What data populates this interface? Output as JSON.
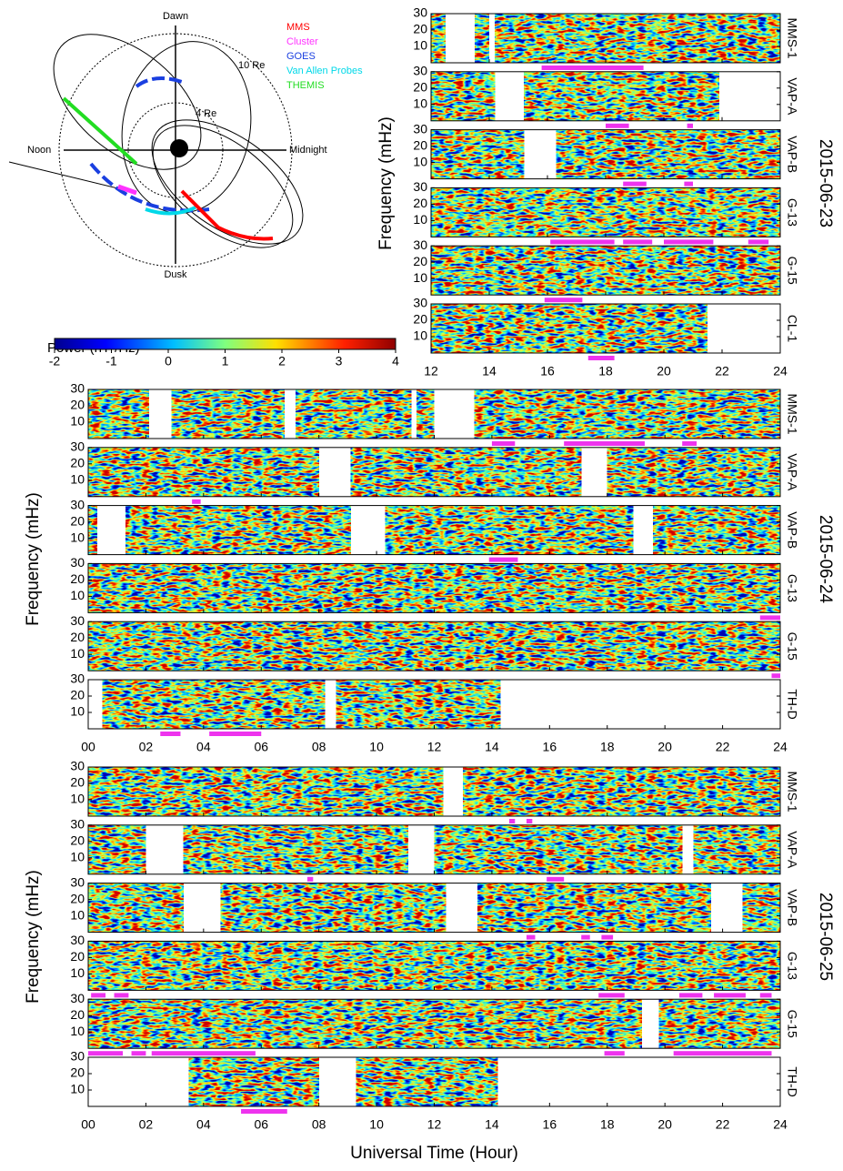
{
  "chart_data": [
    {
      "type": "orbit",
      "axes": {
        "top": "Dawn",
        "bottom": "Dusk",
        "left": "Noon",
        "right": "Midnight"
      },
      "circles": [
        "10 Re",
        "4 Re"
      ],
      "series": [
        {
          "name": "MMS",
          "color": "#ff0000"
        },
        {
          "name": "Cluster",
          "color": "#ff33ff"
        },
        {
          "name": "GOES",
          "color": "#1a3fe0"
        },
        {
          "name": "Van Allen Probes",
          "color": "#00d8e8"
        },
        {
          "name": "THEMIS",
          "color": "#22dd22"
        }
      ]
    },
    {
      "type": "colorbar",
      "title": "Power (nT²/Hz)",
      "xlim": [
        -2,
        4
      ],
      "xticks": [
        -2,
        -1,
        0,
        1,
        2,
        3,
        4
      ]
    },
    {
      "type": "spectrogram",
      "date": "2015-06-23",
      "ylabel": "Frequency (mHz)",
      "xlim": [
        12,
        24
      ],
      "xticks": [
        12,
        14,
        16,
        18,
        20,
        22,
        24
      ],
      "ylim": [
        0,
        30
      ],
      "yticks": [
        10,
        20,
        30
      ],
      "panels": [
        {
          "name": "MMS-1",
          "coverage": [
            [
              12,
              12.5
            ],
            [
              13.5,
              14
            ],
            [
              14.2,
              24
            ]
          ],
          "events": [
            [
              15.8,
              19.3
            ]
          ]
        },
        {
          "name": "VAP-A",
          "coverage": [
            [
              12,
              14.2
            ],
            [
              15.2,
              21.9
            ]
          ],
          "events": [
            [
              18,
              18.8
            ],
            [
              20.8,
              21
            ]
          ]
        },
        {
          "name": "VAP-B",
          "coverage": [
            [
              12,
              15.2
            ],
            [
              16.3,
              24
            ]
          ],
          "events": [
            [
              18.6,
              19.4
            ],
            [
              20.7,
              21
            ]
          ]
        },
        {
          "name": "G-13",
          "coverage": [
            [
              12,
              24
            ]
          ],
          "events": [
            [
              16.1,
              18.3
            ],
            [
              18.6,
              19.6
            ],
            [
              20,
              21.7
            ],
            [
              22.9,
              23.6
            ]
          ]
        },
        {
          "name": "G-15",
          "coverage": [
            [
              12,
              24
            ]
          ],
          "events": [
            [
              15.9,
              17.2
            ]
          ]
        },
        {
          "name": "CL-1",
          "coverage": [
            [
              12,
              21.5
            ]
          ],
          "events": [
            [
              17.4,
              18.3
            ]
          ]
        }
      ]
    },
    {
      "type": "spectrogram",
      "date": "2015-06-24",
      "ylabel": "Frequency (mHz)",
      "xlim": [
        0,
        24
      ],
      "xticks": [
        {
          "value": 0,
          "label": "00"
        },
        {
          "value": 2,
          "label": "02"
        },
        {
          "value": 4,
          "label": "04"
        },
        {
          "value": 6,
          "label": "06"
        },
        {
          "value": 8,
          "label": "08"
        },
        10,
        12,
        14,
        16,
        18,
        20,
        22,
        24
      ],
      "ylim": [
        0,
        30
      ],
      "yticks": [
        10,
        20,
        30
      ],
      "panels": [
        {
          "name": "MMS-1",
          "coverage": [
            [
              0,
              2.1
            ],
            [
              2.9,
              6.8
            ],
            [
              7.2,
              11.2
            ],
            [
              11.4,
              12
            ],
            [
              13.4,
              24
            ]
          ],
          "events": [
            [
              14,
              14.8
            ],
            [
              16.5,
              19.3
            ],
            [
              20.6,
              21.1
            ]
          ]
        },
        {
          "name": "VAP-A",
          "coverage": [
            [
              0,
              8
            ],
            [
              9.1,
              17.1
            ],
            [
              18,
              24
            ]
          ],
          "events": [
            [
              3.6,
              3.9
            ]
          ]
        },
        {
          "name": "VAP-B",
          "coverage": [
            [
              0,
              0.3
            ],
            [
              1.3,
              9.1
            ],
            [
              10.3,
              18.9
            ],
            [
              19.6,
              24
            ]
          ],
          "events": [
            [
              13.9,
              14.9
            ]
          ]
        },
        {
          "name": "G-13",
          "coverage": [
            [
              0,
              24
            ]
          ],
          "events": [
            [
              23.3,
              24
            ]
          ]
        },
        {
          "name": "G-15",
          "coverage": [
            [
              0,
              24
            ]
          ],
          "events": [
            [
              23.7,
              24
            ]
          ]
        },
        {
          "name": "TH-D",
          "coverage": [
            [
              0.5,
              8.2
            ],
            [
              8.6,
              14.3
            ]
          ],
          "events": [
            [
              2.5,
              3.2
            ],
            [
              4.2,
              6
            ]
          ]
        }
      ]
    },
    {
      "type": "spectrogram",
      "date": "2015-06-25",
      "ylabel": "Frequency (mHz)",
      "xlabel": "Universal Time (Hour)",
      "xlim": [
        0,
        24
      ],
      "xticks": [
        {
          "value": 0,
          "label": "00"
        },
        {
          "value": 2,
          "label": "02"
        },
        {
          "value": 4,
          "label": "04"
        },
        {
          "value": 6,
          "label": "06"
        },
        {
          "value": 8,
          "label": "08"
        },
        10,
        12,
        14,
        16,
        18,
        20,
        22,
        24
      ],
      "ylim": [
        0,
        30
      ],
      "yticks": [
        10,
        20,
        30
      ],
      "panels": [
        {
          "name": "MMS-1",
          "coverage": [
            [
              0,
              12.3
            ],
            [
              13,
              24
            ]
          ],
          "events": [
            [
              14.6,
              14.8
            ],
            [
              15.2,
              15.4
            ]
          ]
        },
        {
          "name": "VAP-A",
          "coverage": [
            [
              0,
              2
            ],
            [
              3.3,
              11.1
            ],
            [
              12,
              20.6
            ],
            [
              21,
              24
            ]
          ],
          "events": [
            [
              7.6,
              7.8
            ],
            [
              15.9,
              16.5
            ]
          ]
        },
        {
          "name": "VAP-B",
          "coverage": [
            [
              0,
              3.3
            ],
            [
              4.6,
              12.4
            ],
            [
              13.5,
              21.6
            ],
            [
              22.7,
              24
            ]
          ],
          "events": [
            [
              15.2,
              15.5
            ],
            [
              17.1,
              17.4
            ],
            [
              17.8,
              18.2
            ]
          ]
        },
        {
          "name": "G-13",
          "coverage": [
            [
              0,
              24
            ]
          ],
          "events": [
            [
              0.1,
              0.6
            ],
            [
              0.9,
              1.4
            ],
            [
              17.7,
              18.6
            ],
            [
              20.5,
              21.3
            ],
            [
              21.7,
              22.8
            ],
            [
              23.3,
              23.7
            ]
          ]
        },
        {
          "name": "G-15",
          "coverage": [
            [
              0,
              19.2
            ],
            [
              19.8,
              24
            ]
          ],
          "events": [
            [
              0,
              1.2
            ],
            [
              1.5,
              2
            ],
            [
              2.2,
              5.8
            ],
            [
              17.9,
              18.6
            ],
            [
              20.3,
              23.7
            ]
          ]
        },
        {
          "name": "TH-D",
          "coverage": [
            [
              3.5,
              8
            ],
            [
              9.3,
              14.2
            ]
          ],
          "events": [
            [
              5.3,
              6.9
            ]
          ]
        }
      ]
    }
  ]
}
